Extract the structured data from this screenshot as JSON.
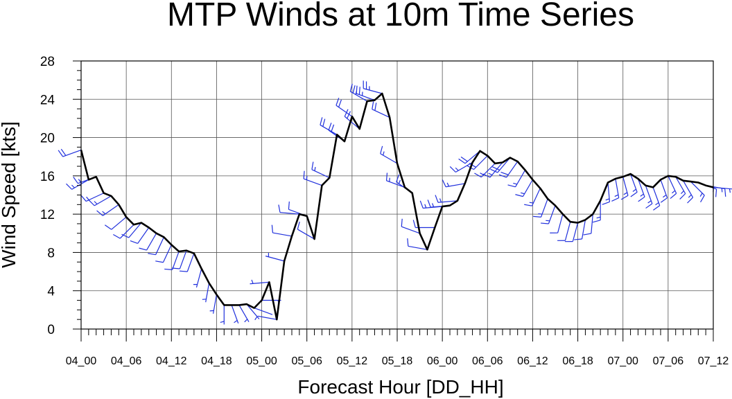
{
  "chart_data": {
    "type": "line",
    "title": "MTP Winds at 10m Time Series",
    "xlabel": "Forecast Hour [DD_HH]",
    "ylabel": "Wind Speed [kts]",
    "xlim": [
      0,
      84
    ],
    "ylim": [
      0,
      28
    ],
    "grid": true,
    "x_ticks": [
      0,
      6,
      12,
      18,
      24,
      30,
      36,
      42,
      48,
      54,
      60,
      66,
      72,
      78,
      84
    ],
    "x_tick_labels": [
      "04_00",
      "04_06",
      "04_12",
      "04_18",
      "05_00",
      "05_06",
      "05_12",
      "05_18",
      "06_00",
      "06_06",
      "06_12",
      "06_18",
      "07_00",
      "07_06",
      "07_12"
    ],
    "y_ticks": [
      0,
      4,
      8,
      12,
      16,
      20,
      24,
      28
    ],
    "y_tick_labels": [
      "0",
      "4",
      "8",
      "12",
      "16",
      "20",
      "24",
      "28"
    ],
    "line_color": "#000000",
    "barb_color": "#1f2fdc",
    "series": [
      {
        "x": [
          0,
          1,
          2,
          3,
          4,
          5,
          6,
          7,
          8,
          9,
          10,
          11,
          12,
          13,
          14,
          15,
          16,
          17,
          18,
          19,
          20,
          21,
          22,
          23,
          24,
          25,
          26,
          27,
          28,
          29,
          30,
          31,
          32,
          33,
          34,
          35,
          36,
          37,
          38,
          39,
          40,
          41,
          42,
          43,
          44,
          45,
          46,
          47,
          48,
          49,
          50,
          51,
          52,
          53,
          54,
          55,
          56,
          57,
          58,
          59,
          60,
          61,
          62,
          63,
          64,
          65,
          66,
          67,
          68,
          69,
          70,
          71,
          72,
          73,
          74,
          75,
          76,
          77,
          78,
          79,
          80,
          81,
          82,
          83,
          84
        ],
        "values": [
          18.7,
          15.6,
          15.9,
          14.2,
          13.9,
          13.0,
          11.7,
          10.9,
          11.1,
          10.6,
          10.0,
          9.6,
          8.8,
          8.1,
          8.2,
          7.9,
          6.3,
          4.8,
          3.6,
          2.5,
          2.5,
          2.5,
          2.6,
          2.2,
          3.0,
          4.9,
          1.0,
          7.1,
          9.7,
          12.0,
          11.8,
          9.4,
          15.0,
          15.8,
          20.3,
          19.6,
          22.2,
          20.9,
          23.8,
          23.9,
          24.6,
          22.1,
          17.3,
          14.8,
          14.2,
          10.0,
          8.3,
          10.6,
          12.8,
          12.9,
          13.4,
          15.2,
          17.4,
          18.6,
          18.1,
          17.3,
          17.4,
          17.9,
          17.5,
          16.6,
          15.6,
          14.7,
          13.6,
          12.9,
          12.0,
          11.2,
          11.1,
          11.4,
          12.0,
          13.4,
          15.3,
          15.7,
          15.9,
          16.2,
          15.7,
          15.0,
          14.8,
          15.6,
          16.0,
          15.9,
          15.5,
          15.4,
          15.3,
          15.0,
          14.8
        ]
      }
    ],
    "wind_barbs": [
      {
        "x": 0,
        "speed": 18.7,
        "dir": 250
      },
      {
        "x": 1,
        "speed": 15.6,
        "dir": 240
      },
      {
        "x": 2,
        "speed": 15.9,
        "dir": 250
      },
      {
        "x": 3,
        "speed": 14.2,
        "dir": 245
      },
      {
        "x": 4,
        "speed": 13.9,
        "dir": 240
      },
      {
        "x": 5,
        "speed": 13.0,
        "dir": 235
      },
      {
        "x": 6,
        "speed": 11.7,
        "dir": 230
      },
      {
        "x": 7,
        "speed": 10.9,
        "dir": 225
      },
      {
        "x": 8,
        "speed": 11.1,
        "dir": 220
      },
      {
        "x": 9,
        "speed": 10.6,
        "dir": 215
      },
      {
        "x": 10,
        "speed": 10.0,
        "dir": 210
      },
      {
        "x": 11,
        "speed": 9.6,
        "dir": 205
      },
      {
        "x": 12,
        "speed": 8.8,
        "dir": 205
      },
      {
        "x": 13,
        "speed": 8.1,
        "dir": 200
      },
      {
        "x": 14,
        "speed": 8.2,
        "dir": 200
      },
      {
        "x": 15,
        "speed": 7.9,
        "dir": 200
      },
      {
        "x": 16,
        "speed": 6.3,
        "dir": 195
      },
      {
        "x": 17,
        "speed": 4.8,
        "dir": 190
      },
      {
        "x": 18,
        "speed": 3.6,
        "dir": 190
      },
      {
        "x": 19,
        "speed": 2.5,
        "dir": 180
      },
      {
        "x": 20,
        "speed": 2.5,
        "dir": 160
      },
      {
        "x": 21,
        "speed": 2.5,
        "dir": 150
      },
      {
        "x": 22,
        "speed": 2.6,
        "dir": 140
      },
      {
        "x": 23,
        "speed": 2.2,
        "dir": 110
      },
      {
        "x": 24,
        "speed": 3.0,
        "dir": 90
      },
      {
        "x": 25,
        "speed": 4.9,
        "dir": 265
      },
      {
        "x": 26,
        "speed": 1.0,
        "dir": 280
      },
      {
        "x": 27,
        "speed": 7.1,
        "dir": 285
      },
      {
        "x": 28,
        "speed": 9.7,
        "dir": 280
      },
      {
        "x": 29,
        "speed": 12.0,
        "dir": 275
      },
      {
        "x": 30,
        "speed": 11.8,
        "dir": 290
      },
      {
        "x": 31,
        "speed": 9.4,
        "dir": 300
      },
      {
        "x": 32,
        "speed": 15.0,
        "dir": 290
      },
      {
        "x": 33,
        "speed": 15.8,
        "dir": 295
      },
      {
        "x": 34,
        "speed": 20.3,
        "dir": 300
      },
      {
        "x": 35,
        "speed": 19.6,
        "dir": 305
      },
      {
        "x": 36,
        "speed": 22.2,
        "dir": 305
      },
      {
        "x": 37,
        "speed": 20.9,
        "dir": 310
      },
      {
        "x": 38,
        "speed": 23.8,
        "dir": 300
      },
      {
        "x": 39,
        "speed": 23.9,
        "dir": 290
      },
      {
        "x": 40,
        "speed": 24.6,
        "dir": 285
      },
      {
        "x": 41,
        "speed": 22.1,
        "dir": 295
      },
      {
        "x": 42,
        "speed": 17.3,
        "dir": 300
      },
      {
        "x": 43,
        "speed": 14.8,
        "dir": 290
      },
      {
        "x": 44,
        "speed": 14.2,
        "dir": 305
      },
      {
        "x": 45,
        "speed": 10.0,
        "dir": 290
      },
      {
        "x": 46,
        "speed": 8.3,
        "dir": 280
      },
      {
        "x": 47,
        "speed": 10.6,
        "dir": 270
      },
      {
        "x": 48,
        "speed": 12.8,
        "dir": 265
      },
      {
        "x": 49,
        "speed": 12.9,
        "dir": 265
      },
      {
        "x": 50,
        "speed": 13.4,
        "dir": 265
      },
      {
        "x": 51,
        "speed": 15.2,
        "dir": 260
      },
      {
        "x": 52,
        "speed": 17.4,
        "dir": 240
      },
      {
        "x": 53,
        "speed": 18.6,
        "dir": 230
      },
      {
        "x": 54,
        "speed": 18.1,
        "dir": 225
      },
      {
        "x": 55,
        "speed": 17.3,
        "dir": 225
      },
      {
        "x": 56,
        "speed": 17.4,
        "dir": 220
      },
      {
        "x": 57,
        "speed": 17.9,
        "dir": 220
      },
      {
        "x": 58,
        "speed": 17.5,
        "dir": 215
      },
      {
        "x": 59,
        "speed": 16.6,
        "dir": 210
      },
      {
        "x": 60,
        "speed": 15.6,
        "dir": 210
      },
      {
        "x": 61,
        "speed": 14.7,
        "dir": 205
      },
      {
        "x": 62,
        "speed": 13.6,
        "dir": 200
      },
      {
        "x": 63,
        "speed": 12.9,
        "dir": 200
      },
      {
        "x": 64,
        "speed": 12.0,
        "dir": 195
      },
      {
        "x": 65,
        "speed": 11.2,
        "dir": 195
      },
      {
        "x": 66,
        "speed": 11.1,
        "dir": 195
      },
      {
        "x": 67,
        "speed": 11.4,
        "dir": 190
      },
      {
        "x": 68,
        "speed": 12.0,
        "dir": 185
      },
      {
        "x": 69,
        "speed": 13.4,
        "dir": 180
      },
      {
        "x": 70,
        "speed": 15.3,
        "dir": 175
      },
      {
        "x": 71,
        "speed": 15.7,
        "dir": 170
      },
      {
        "x": 72,
        "speed": 15.9,
        "dir": 165
      },
      {
        "x": 73,
        "speed": 16.2,
        "dir": 160
      },
      {
        "x": 74,
        "speed": 15.7,
        "dir": 160
      },
      {
        "x": 75,
        "speed": 15.0,
        "dir": 160
      },
      {
        "x": 76,
        "speed": 14.8,
        "dir": 160
      },
      {
        "x": 77,
        "speed": 15.6,
        "dir": 160
      },
      {
        "x": 78,
        "speed": 16.0,
        "dir": 155
      },
      {
        "x": 79,
        "speed": 15.9,
        "dir": 150
      },
      {
        "x": 80,
        "speed": 15.5,
        "dir": 150
      },
      {
        "x": 81,
        "speed": 15.4,
        "dir": 135
      },
      {
        "x": 82,
        "speed": 15.3,
        "dir": 110
      },
      {
        "x": 83,
        "speed": 15.0,
        "dir": 100
      },
      {
        "x": 84,
        "speed": 14.8,
        "dir": 95
      }
    ]
  }
}
